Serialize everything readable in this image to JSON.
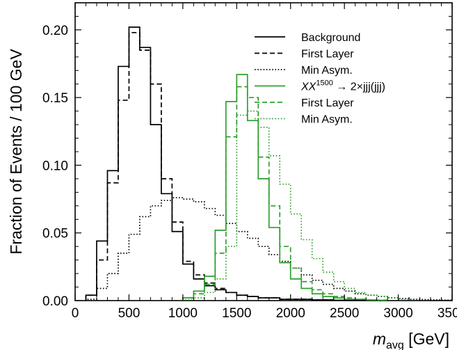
{
  "chart_data": {
    "type": "histogram",
    "xlabel_main": "m",
    "xlabel_sub": "avg",
    "xlabel_unit": " [GeV]",
    "ylabel": "Fraction of Events / 100 GeV",
    "xlim": [
      0,
      3500
    ],
    "ylim": [
      0,
      0.22
    ],
    "bin_width": 100,
    "xticks": [
      0,
      500,
      1000,
      1500,
      2000,
      2500,
      3000,
      3500
    ],
    "yticks": [
      0.0,
      0.05,
      0.1,
      0.15,
      0.2
    ],
    "ytick_labels": [
      "0.00",
      "0.05",
      "0.10",
      "0.15",
      "0.20"
    ],
    "grid": false,
    "legend_position": "top-right",
    "series": [
      {
        "name": "Background",
        "color": "#000000",
        "style": "solid",
        "bin_start": 100,
        "values": [
          0.004,
          0.044,
          0.096,
          0.173,
          0.202,
          0.187,
          0.13,
          0.079,
          0.051,
          0.027,
          0.016,
          0.011,
          0.008,
          0.006,
          0.004,
          0.003,
          0.002,
          0.002,
          0.001,
          0.001,
          0.001,
          0.0005,
          0.0005,
          0.0003,
          0.0003,
          0.0002,
          0.0002,
          0.0001
        ]
      },
      {
        "name": "First Layer",
        "color": "#000000",
        "style": "dashed",
        "bin_start": 100,
        "values": [
          0.004,
          0.03,
          0.087,
          0.148,
          0.198,
          0.185,
          0.16,
          0.09,
          0.058,
          0.029,
          0.019,
          0.013,
          0.009,
          0.006,
          0.004,
          0.003,
          0.002,
          0.002,
          0.001,
          0.001,
          0.001,
          0.0005,
          0.0005,
          0.0003,
          0.0003,
          0.0002,
          0.0002,
          0.0001
        ]
      },
      {
        "name": "Min Asym.",
        "color": "#000000",
        "style": "dotted",
        "bin_start": 100,
        "values": [
          0.001,
          0.009,
          0.02,
          0.035,
          0.049,
          0.062,
          0.07,
          0.074,
          0.076,
          0.075,
          0.073,
          0.068,
          0.063,
          0.057,
          0.051,
          0.046,
          0.04,
          0.034,
          0.029,
          0.024,
          0.019,
          0.015,
          0.012,
          0.009,
          0.007,
          0.005,
          0.004,
          0.003,
          0.002,
          0.0015,
          0.001,
          0.0008,
          0.0006,
          0.0004
        ]
      },
      {
        "name_prefix": "XX",
        "name_sup": "1500",
        "name_suffix": " → 2×jjj(jjj)",
        "color": "#2ca02c",
        "style": "solid",
        "bin_start": 1000,
        "values": [
          0.002,
          0.007,
          0.018,
          0.052,
          0.147,
          0.167,
          0.133,
          0.09,
          0.054,
          0.028,
          0.016,
          0.009,
          0.005,
          0.003,
          0.002,
          0.001,
          0.001,
          0.0005,
          0.0003
        ]
      },
      {
        "name": "First Layer",
        "color": "#2ca02c",
        "style": "dashed",
        "bin_start": 1000,
        "values": [
          0.002,
          0.005,
          0.012,
          0.035,
          0.121,
          0.158,
          0.15,
          0.106,
          0.07,
          0.04,
          0.024,
          0.014,
          0.008,
          0.005,
          0.003,
          0.002,
          0.001,
          0.0006,
          0.0004
        ]
      },
      {
        "name": "Min Asym.",
        "color": "#2ca02c",
        "style": "dotted",
        "bin_start": 1000,
        "values": [
          0.0005,
          0.002,
          0.006,
          0.016,
          0.04,
          0.137,
          0.14,
          0.128,
          0.107,
          0.086,
          0.064,
          0.045,
          0.031,
          0.021,
          0.014,
          0.009,
          0.006,
          0.004,
          0.003,
          0.002,
          0.001,
          0.0008
        ]
      }
    ]
  }
}
